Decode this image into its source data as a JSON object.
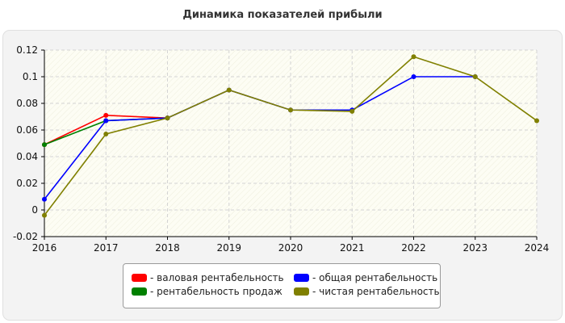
{
  "chart_data": {
    "type": "line",
    "title": "Динамика показателей прибыли",
    "x": [
      2016,
      2017,
      2018,
      2019,
      2020,
      2021,
      2022,
      2023,
      2024
    ],
    "x_tick_labels": [
      "2016",
      "2017",
      "2018",
      "2019",
      "2020",
      "2021",
      "2022",
      "2023",
      "2024"
    ],
    "y_tick_labels": [
      "-0.02",
      "0",
      "0.02",
      "0.04",
      "0.06",
      "0.08",
      "0.1",
      "0.12"
    ],
    "xlim": [
      2016,
      2024
    ],
    "ylim": [
      -0.02,
      0.12
    ],
    "grid": true,
    "legend_position": "bottom-center",
    "series": [
      {
        "name": "- валовая рентабельность",
        "color": "#ff0000",
        "points": [
          [
            2016,
            0.049
          ],
          [
            2017,
            0.071
          ],
          [
            2018,
            0.069
          ]
        ]
      },
      {
        "name": "- рентабельность продаж",
        "color": "#008000",
        "points": [
          [
            2016,
            0.049
          ],
          [
            2017,
            0.067
          ],
          [
            2018,
            0.069
          ]
        ]
      },
      {
        "name": "- общая рентабельность",
        "color": "#0000ff",
        "points": [
          [
            2016,
            0.008
          ],
          [
            2017,
            0.067
          ],
          [
            2018,
            0.069
          ],
          [
            2019,
            0.09
          ],
          [
            2020,
            0.075
          ],
          [
            2021,
            0.075
          ],
          [
            2022,
            0.1
          ],
          [
            2023,
            0.1
          ]
        ]
      },
      {
        "name": "- чистая рентабельность",
        "color": "#808000",
        "points": [
          [
            2016,
            -0.004
          ],
          [
            2017,
            0.057
          ],
          [
            2018,
            0.069
          ],
          [
            2019,
            0.09
          ],
          [
            2020,
            0.075
          ],
          [
            2021,
            0.074
          ],
          [
            2022,
            0.115
          ],
          [
            2023,
            0.1
          ],
          [
            2024,
            0.067
          ]
        ]
      }
    ]
  }
}
